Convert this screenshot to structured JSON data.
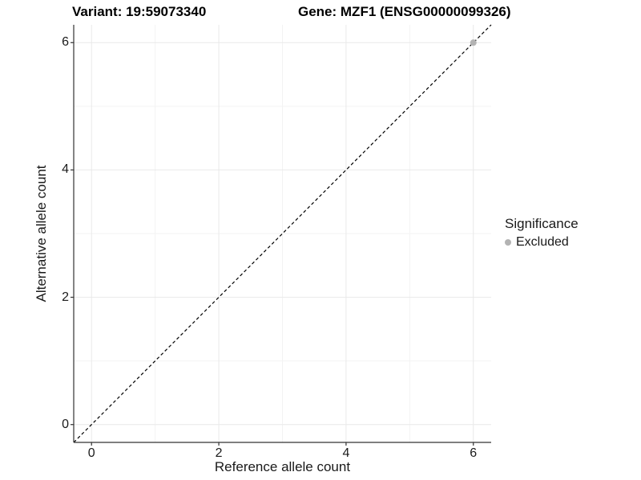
{
  "chart_data": {
    "type": "scatter",
    "title_left": "Variant: 19:59073340",
    "title_right": "Gene: MZF1 (ENSG00000099326)",
    "xlabel": "Reference allele count",
    "ylabel": "Alternative allele count",
    "xlim": [
      -0.28,
      6.28
    ],
    "ylim": [
      -0.28,
      6.28
    ],
    "xticks": [
      0,
      2,
      4,
      6
    ],
    "yticks": [
      0,
      2,
      4,
      6
    ],
    "minor_xticks": [
      1,
      3,
      5
    ],
    "minor_yticks": [
      1,
      3,
      5
    ],
    "grid": true,
    "points": [
      {
        "x": 6,
        "y": 6,
        "significance": "Excluded"
      }
    ],
    "reference_line": {
      "slope": 1,
      "intercept": 0,
      "style": "dashed",
      "color": "#000000"
    },
    "legend": {
      "title": "Significance",
      "position": "right",
      "items": [
        {
          "label": "Excluded",
          "color": "#b3b3b3"
        }
      ]
    },
    "colors": {
      "background": "#ffffff",
      "excluded_point": "#b3b3b3",
      "major_grid": "#e9e9e9",
      "minor_grid": "#f3f3f3",
      "axis_line": "#333333",
      "tick_mark": "#333333"
    }
  }
}
